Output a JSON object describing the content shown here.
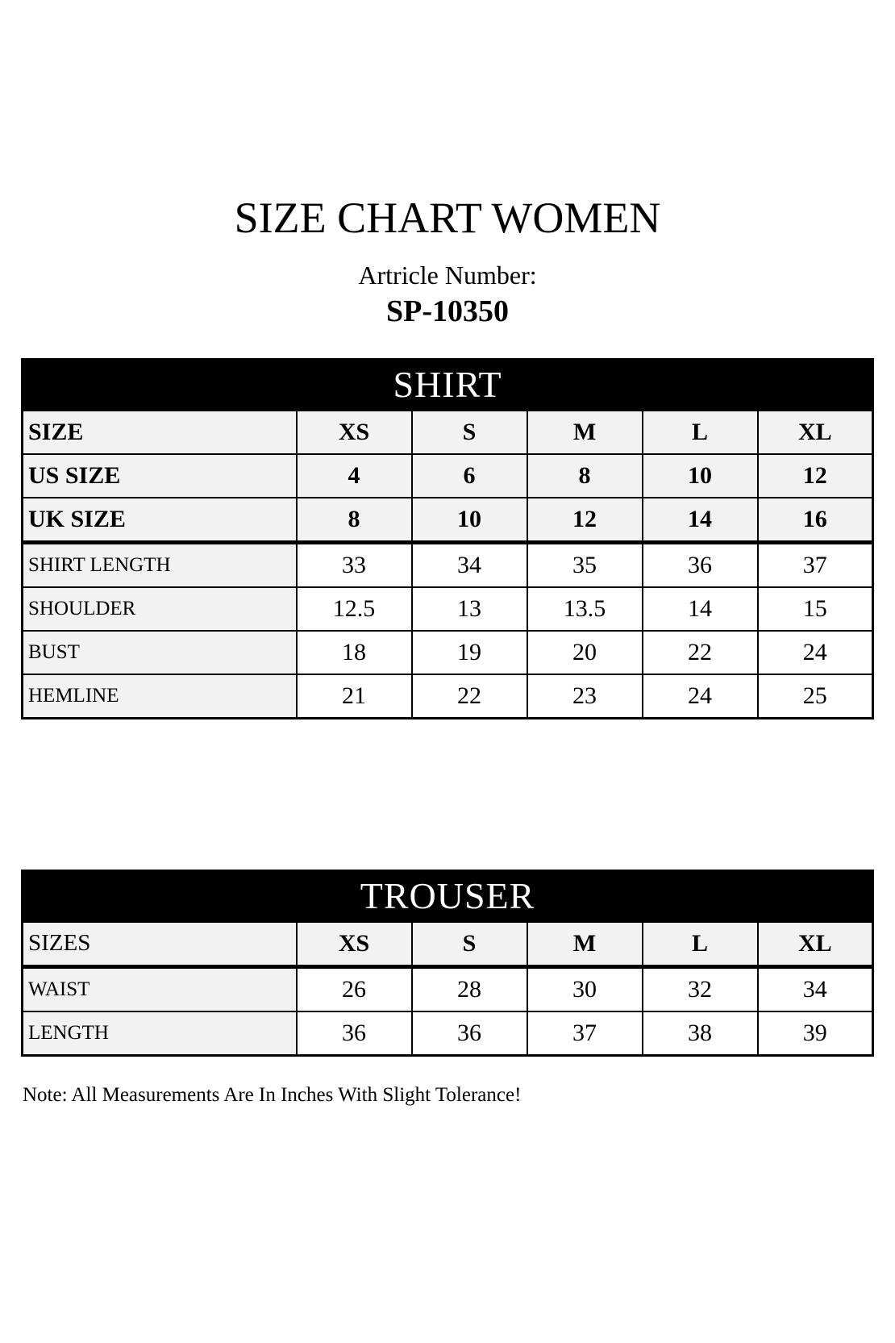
{
  "page": {
    "title": "SIZE CHART WOMEN",
    "article_label": "Artricle Number:",
    "article_number": "SP-10350",
    "note": "Note: All Measurements Are In Inches With Slight Tolerance!"
  },
  "colors": {
    "banner_bg": "#000000",
    "banner_text": "#ffffff",
    "row_shade": "#f2f2f2",
    "border": "#000000",
    "page_bg": "#ffffff"
  },
  "tables": [
    {
      "title": "SHIRT",
      "rows": [
        {
          "label": "SIZE",
          "values": [
            "XS",
            "S",
            "M",
            "L",
            "XL"
          ]
        },
        {
          "label": "US SIZE",
          "values": [
            "4",
            "6",
            "8",
            "10",
            "12"
          ]
        },
        {
          "label": "UK SIZE",
          "values": [
            "8",
            "10",
            "12",
            "14",
            "16"
          ]
        },
        {
          "label": "SHIRT LENGTH",
          "values": [
            "33",
            "34",
            "35",
            "36",
            "37"
          ]
        },
        {
          "label": "SHOULDER",
          "values": [
            "12.5",
            "13",
            "13.5",
            "14",
            "15"
          ]
        },
        {
          "label": "BUST",
          "values": [
            "18",
            "19",
            "20",
            "22",
            "24"
          ]
        },
        {
          "label": "HEMLINE",
          "values": [
            "21",
            "22",
            "23",
            "24",
            "25"
          ]
        }
      ]
    },
    {
      "title": "TROUSER",
      "rows": [
        {
          "label": "SIZES",
          "values": [
            "XS",
            "S",
            "M",
            "L",
            "XL"
          ]
        },
        {
          "label": "WAIST",
          "values": [
            "26",
            "28",
            "30",
            "32",
            "34"
          ]
        },
        {
          "label": "LENGTH",
          "values": [
            "36",
            "36",
            "37",
            "38",
            "39"
          ]
        }
      ]
    }
  ]
}
